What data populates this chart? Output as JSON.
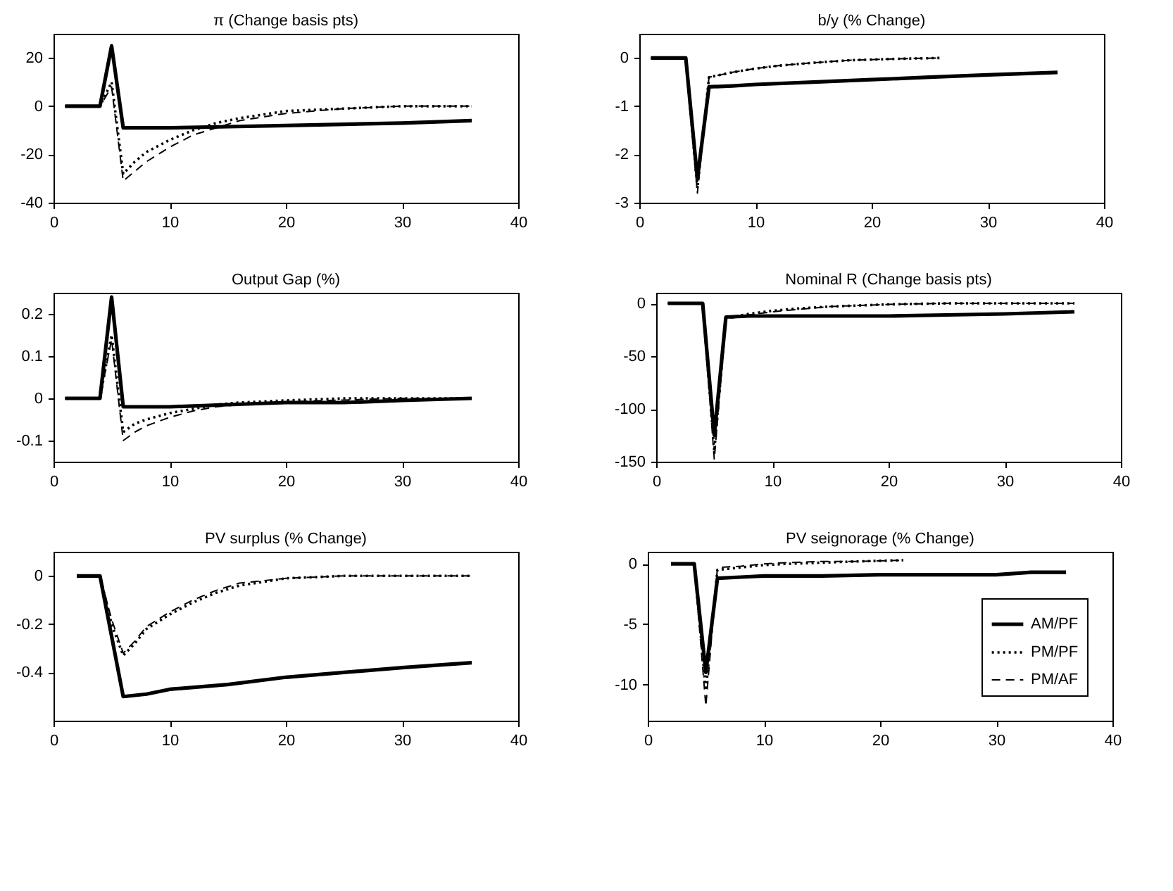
{
  "chart_data": [
    {
      "type": "line",
      "title": "π (Change basis pts)",
      "xlim": [
        0,
        40
      ],
      "xticks": [
        0,
        10,
        20,
        30,
        40
      ],
      "ylim": [
        -40,
        30
      ],
      "yticks": [
        -40,
        -20,
        0,
        20
      ],
      "grid": false,
      "series": [
        {
          "color": "#000000",
          "line_style": "solid",
          "x": [
            1,
            2,
            3,
            4,
            5,
            6,
            8,
            10,
            15,
            20,
            25,
            30,
            36
          ],
          "values": [
            0,
            0,
            0,
            0,
            25,
            -9,
            -9,
            -9,
            -8.5,
            -8,
            -7.5,
            -7,
            -6
          ]
        },
        {
          "color": "#000000",
          "line_style": "dotted",
          "x": [
            1,
            2,
            3,
            4,
            5,
            6,
            7,
            8,
            10,
            12,
            14,
            16,
            20,
            25,
            30,
            36
          ],
          "values": [
            0,
            0,
            0,
            0,
            10,
            -28,
            -23,
            -19,
            -14,
            -10,
            -7,
            -5,
            -2,
            -1,
            0,
            0
          ]
        },
        {
          "color": "#000000",
          "line_style": "dashed",
          "x": [
            1,
            2,
            3,
            4,
            5,
            6,
            7,
            8,
            10,
            12,
            14,
            16,
            20,
            25,
            30,
            36
          ],
          "values": [
            0,
            0,
            0,
            0,
            8,
            -31,
            -27,
            -23,
            -17,
            -12,
            -9,
            -6,
            -3,
            -1,
            0,
            0
          ]
        }
      ]
    },
    {
      "type": "line",
      "title": "b/y (% Change)",
      "xlim": [
        0,
        40
      ],
      "xticks": [
        0,
        10,
        20,
        30,
        40
      ],
      "ylim": [
        -3,
        0.5
      ],
      "yticks": [
        -3,
        -2,
        -1,
        0
      ],
      "grid": false,
      "series": [
        {
          "color": "#000000",
          "line_style": "solid",
          "x": [
            1,
            2,
            3,
            4,
            5,
            6,
            8,
            10,
            15,
            20,
            25,
            30,
            36
          ],
          "values": [
            0,
            0,
            0,
            0,
            -2.5,
            -0.6,
            -0.58,
            -0.55,
            -0.5,
            -0.45,
            -0.4,
            -0.35,
            -0.3
          ]
        },
        {
          "color": "#000000",
          "line_style": "dotted",
          "x": [
            1,
            2,
            3,
            4,
            5,
            6,
            8,
            10,
            12,
            15,
            18,
            22,
            26
          ],
          "values": [
            0,
            0,
            0,
            0,
            -2.7,
            -0.4,
            -0.3,
            -0.22,
            -0.16,
            -0.1,
            -0.05,
            -0.02,
            0
          ]
        },
        {
          "color": "#000000",
          "line_style": "dashed",
          "x": [
            1,
            2,
            3,
            4,
            5,
            6,
            8,
            10,
            12,
            15,
            18,
            22,
            26
          ],
          "values": [
            0,
            0,
            0,
            0,
            -2.8,
            -0.4,
            -0.3,
            -0.22,
            -0.16,
            -0.1,
            -0.05,
            -0.02,
            0
          ]
        }
      ]
    },
    {
      "type": "line",
      "title": "Output Gap (%)",
      "xlim": [
        0,
        40
      ],
      "xticks": [
        0,
        10,
        20,
        30,
        40
      ],
      "ylim": [
        -0.15,
        0.25
      ],
      "yticks": [
        -0.1,
        0,
        0.1,
        0.2
      ],
      "grid": false,
      "series": [
        {
          "color": "#000000",
          "line_style": "solid",
          "x": [
            1,
            2,
            3,
            4,
            5,
            6,
            8,
            10,
            15,
            20,
            25,
            30,
            36
          ],
          "values": [
            0,
            0,
            0,
            0,
            0.24,
            -0.02,
            -0.02,
            -0.02,
            -0.015,
            -0.01,
            -0.01,
            -0.005,
            0
          ]
        },
        {
          "color": "#000000",
          "line_style": "dotted",
          "x": [
            1,
            2,
            3,
            4,
            5,
            6,
            7,
            8,
            10,
            12,
            14,
            16,
            20,
            25,
            30,
            36
          ],
          "values": [
            0,
            0,
            0,
            0,
            0.15,
            -0.08,
            -0.06,
            -0.05,
            -0.035,
            -0.025,
            -0.015,
            -0.01,
            -0.005,
            0,
            0,
            0
          ]
        },
        {
          "color": "#000000",
          "line_style": "dashed",
          "x": [
            1,
            2,
            3,
            4,
            5,
            6,
            7,
            8,
            10,
            12,
            14,
            16,
            20,
            25,
            30,
            36
          ],
          "values": [
            0,
            0,
            0,
            0,
            0.14,
            -0.1,
            -0.08,
            -0.065,
            -0.045,
            -0.03,
            -0.02,
            -0.015,
            -0.008,
            -0.004,
            0,
            0
          ]
        }
      ]
    },
    {
      "type": "line",
      "title": "Nominal R (Change basis pts)",
      "xlim": [
        0,
        40
      ],
      "xticks": [
        0,
        10,
        20,
        30,
        40
      ],
      "ylim": [
        -150,
        10
      ],
      "yticks": [
        -150,
        -100,
        -50,
        0
      ],
      "grid": false,
      "series": [
        {
          "color": "#000000",
          "line_style": "solid",
          "x": [
            1,
            2,
            3,
            4,
            5,
            6,
            8,
            10,
            15,
            20,
            25,
            30,
            36
          ],
          "values": [
            0,
            0,
            0,
            0,
            -125,
            -13,
            -12,
            -12,
            -12,
            -12,
            -11,
            -10,
            -8
          ]
        },
        {
          "color": "#000000",
          "line_style": "dotted",
          "x": [
            1,
            2,
            3,
            4,
            5,
            6,
            8,
            10,
            12,
            15,
            20,
            25,
            30,
            36
          ],
          "values": [
            0,
            0,
            0,
            0,
            -140,
            -14,
            -10,
            -7,
            -5,
            -3,
            -1,
            0,
            0,
            0
          ]
        },
        {
          "color": "#000000",
          "line_style": "dashed",
          "x": [
            1,
            2,
            3,
            4,
            5,
            6,
            8,
            10,
            12,
            15,
            20,
            25,
            30,
            36
          ],
          "values": [
            0,
            0,
            0,
            0,
            -148,
            -15,
            -11,
            -8,
            -6,
            -3,
            -1,
            0,
            0,
            0
          ]
        }
      ]
    },
    {
      "type": "line",
      "title": "PV surplus (% Change)",
      "xlim": [
        0,
        40
      ],
      "xticks": [
        0,
        10,
        20,
        30,
        40
      ],
      "ylim": [
        -0.6,
        0.1
      ],
      "yticks": [
        -0.4,
        -0.2,
        0
      ],
      "grid": false,
      "series": [
        {
          "color": "#000000",
          "line_style": "solid",
          "x": [
            2,
            3,
            4,
            5,
            6,
            8,
            10,
            15,
            20,
            25,
            30,
            36
          ],
          "values": [
            0,
            0,
            0,
            -0.25,
            -0.5,
            -0.49,
            -0.47,
            -0.45,
            -0.42,
            -0.4,
            -0.38,
            -0.36
          ]
        },
        {
          "color": "#000000",
          "line_style": "dotted",
          "x": [
            2,
            3,
            4,
            5,
            6,
            7,
            8,
            10,
            12,
            14,
            16,
            20,
            25,
            30,
            36
          ],
          "values": [
            0,
            0,
            0,
            -0.2,
            -0.33,
            -0.28,
            -0.22,
            -0.16,
            -0.11,
            -0.07,
            -0.04,
            -0.01,
            0,
            0,
            0
          ]
        },
        {
          "color": "#000000",
          "line_style": "dashed",
          "x": [
            2,
            3,
            4,
            5,
            6,
            7,
            8,
            10,
            12,
            14,
            16,
            20,
            25,
            30,
            36
          ],
          "values": [
            0,
            0,
            0,
            -0.18,
            -0.32,
            -0.27,
            -0.21,
            -0.15,
            -0.1,
            -0.06,
            -0.03,
            -0.01,
            0,
            0,
            0
          ]
        }
      ]
    },
    {
      "type": "line",
      "title": "PV seignorage (% Change)",
      "xlim": [
        0,
        40
      ],
      "xticks": [
        0,
        10,
        20,
        30,
        40
      ],
      "ylim": [
        -13,
        1
      ],
      "yticks": [
        -10,
        -5,
        0
      ],
      "grid": false,
      "legend": "bottom right",
      "series": [
        {
          "name": "AM/PF",
          "color": "#000000",
          "line_style": "solid",
          "x": [
            2,
            3,
            4,
            5,
            6,
            8,
            10,
            15,
            20,
            25,
            30,
            33,
            36
          ],
          "values": [
            0,
            0,
            0,
            -9,
            -1.2,
            -1.1,
            -1,
            -1,
            -0.9,
            -0.9,
            -0.9,
            -0.7,
            -0.7
          ]
        },
        {
          "name": "PM/PF",
          "color": "#000000",
          "line_style": "dotted",
          "x": [
            2,
            3,
            4,
            5,
            6,
            8,
            10,
            12,
            15,
            18,
            22
          ],
          "values": [
            0,
            0,
            0,
            -10.5,
            -0.5,
            -0.3,
            -0.1,
            0,
            0.1,
            0.2,
            0.3
          ]
        },
        {
          "name": "PM/AF",
          "color": "#000000",
          "line_style": "dashed",
          "x": [
            2,
            3,
            4,
            5,
            6,
            8,
            10,
            12,
            15,
            18,
            22
          ],
          "values": [
            0,
            0,
            0,
            -11.8,
            -0.3,
            -0.2,
            0,
            0.1,
            0.2,
            0.2,
            0.3
          ]
        }
      ]
    }
  ]
}
